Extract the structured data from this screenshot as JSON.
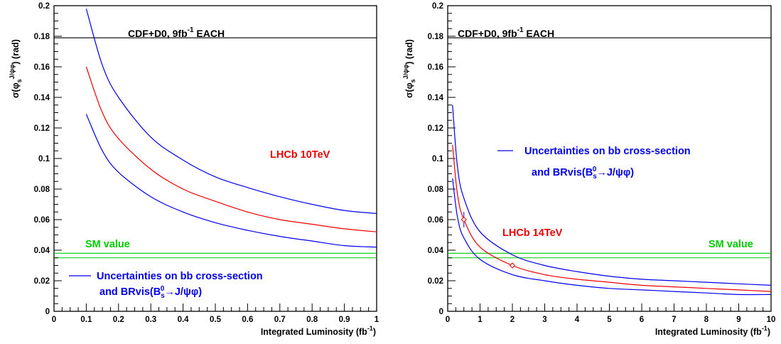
{
  "chart_data": [
    {
      "type": "line",
      "title": "",
      "xlabel": "Integrated Luminosity",
      "xlabel_unit": "(fb-1)",
      "ylabel": "σ(φs J/ψφ) (rad)",
      "xlim": [
        0,
        1
      ],
      "ylim": [
        0,
        0.2
      ],
      "xticks": [
        "0",
        "0.1",
        "0.2",
        "0.3",
        "0.4",
        "0.5",
        "0.6",
        "0.7",
        "0.8",
        "0.9",
        "1"
      ],
      "yticks": [
        "0",
        "0.02",
        "0.04",
        "0.06",
        "0.08",
        "0.1",
        "0.12",
        "0.14",
        "0.16",
        "0.18",
        "0.2"
      ],
      "grid": false,
      "series": [
        {
          "color": "#0000ee",
          "x": [
            0.1,
            0.15,
            0.2,
            0.3,
            0.4,
            0.5,
            0.6,
            0.7,
            0.8,
            0.9,
            1.0
          ],
          "y": [
            0.198,
            0.161,
            0.14,
            0.114,
            0.099,
            0.088,
            0.081,
            0.075,
            0.07,
            0.066,
            0.064
          ]
        },
        {
          "name": "LHCb 10TeV",
          "color": "#ee0000",
          "x": [
            0.1,
            0.15,
            0.2,
            0.3,
            0.4,
            0.5,
            0.6,
            0.7,
            0.8,
            0.9,
            1.0
          ],
          "y": [
            0.16,
            0.13,
            0.113,
            0.093,
            0.08,
            0.072,
            0.065,
            0.06,
            0.057,
            0.054,
            0.052
          ]
        },
        {
          "color": "#0000ee",
          "x": [
            0.1,
            0.15,
            0.2,
            0.3,
            0.4,
            0.5,
            0.6,
            0.7,
            0.8,
            0.9,
            1.0
          ],
          "y": [
            0.129,
            0.105,
            0.091,
            0.075,
            0.065,
            0.058,
            0.053,
            0.049,
            0.046,
            0.043,
            0.042
          ]
        }
      ],
      "hlines": [
        {
          "y": 0.179,
          "color": "#000000"
        },
        {
          "y": 0.038,
          "color": "#00cc00"
        },
        {
          "y": 0.035,
          "color": "#00cc00"
        }
      ],
      "points": [],
      "labels": {
        "cdf_prefix": "CDF+D0, 9fb",
        "cdf_exp": "-1",
        "cdf_suffix": " EACH",
        "sm": "SM value",
        "lhcb": "LHCb 10TeV",
        "unc_line1": "Uncertainties on bb cross-section",
        "unc_line2": "and BRvis(Bs0→J/ψφ)"
      },
      "colors": {
        "sm": "#00cc00",
        "lhcb": "#ee0000",
        "unc": "#0000ee"
      }
    },
    {
      "type": "line",
      "title": "",
      "xlabel": "Integrated Luminosity",
      "xlabel_unit": "(fb-1)",
      "ylabel": "σ(φs J/ψφ) (rad)",
      "xlim": [
        0,
        10
      ],
      "ylim": [
        0,
        0.2
      ],
      "xticks": [
        "0",
        "1",
        "2",
        "3",
        "4",
        "5",
        "6",
        "7",
        "8",
        "9",
        "10"
      ],
      "yticks": [
        "0",
        "0.02",
        "0.04",
        "0.06",
        "0.08",
        "0.1",
        "0.12",
        "0.14",
        "0.16",
        "0.18",
        "0.2"
      ],
      "grid": false,
      "series": [
        {
          "color": "#0000ee",
          "x": [
            0.15,
            0.3,
            0.5,
            1,
            2,
            3,
            4,
            5,
            6,
            7,
            8,
            9,
            10
          ],
          "y": [
            0.135,
            0.095,
            0.074,
            0.052,
            0.037,
            0.03,
            0.026,
            0.023,
            0.021,
            0.02,
            0.019,
            0.018,
            0.017
          ]
        },
        {
          "name": "LHCb 14TeV",
          "color": "#ee0000",
          "x": [
            0.15,
            0.3,
            0.5,
            1,
            2,
            3,
            4,
            5,
            6,
            7,
            8,
            9,
            10
          ],
          "y": [
            0.109,
            0.077,
            0.06,
            0.042,
            0.03,
            0.024,
            0.021,
            0.019,
            0.017,
            0.016,
            0.015,
            0.014,
            0.013
          ]
        },
        {
          "color": "#0000ee",
          "x": [
            0.15,
            0.3,
            0.5,
            1,
            2,
            3,
            4,
            5,
            6,
            7,
            8,
            9,
            10
          ],
          "y": [
            0.087,
            0.062,
            0.048,
            0.034,
            0.024,
            0.02,
            0.017,
            0.015,
            0.014,
            0.013,
            0.012,
            0.011,
            0.011
          ]
        }
      ],
      "hlines": [
        {
          "y": 0.179,
          "color": "#000000"
        },
        {
          "y": 0.038,
          "color": "#00cc00"
        },
        {
          "y": 0.035,
          "color": "#00cc00"
        }
      ],
      "points": [
        {
          "x": 0.5,
          "y": 0.06,
          "err": 0.005
        },
        {
          "x": 2,
          "y": 0.03,
          "err": 0.001
        }
      ],
      "labels": {
        "cdf_prefix": "CDF+D0, 9fb",
        "cdf_exp": "-1",
        "cdf_suffix": " EACH",
        "sm": "SM value",
        "lhcb": "LHCb 14TeV",
        "unc_line1": "Uncertainties on bb cross-section",
        "unc_line2": "and BRvis(Bs0→J/ψφ)"
      },
      "colors": {
        "sm": "#00cc00",
        "lhcb": "#ee0000",
        "unc": "#0000ee"
      }
    }
  ]
}
